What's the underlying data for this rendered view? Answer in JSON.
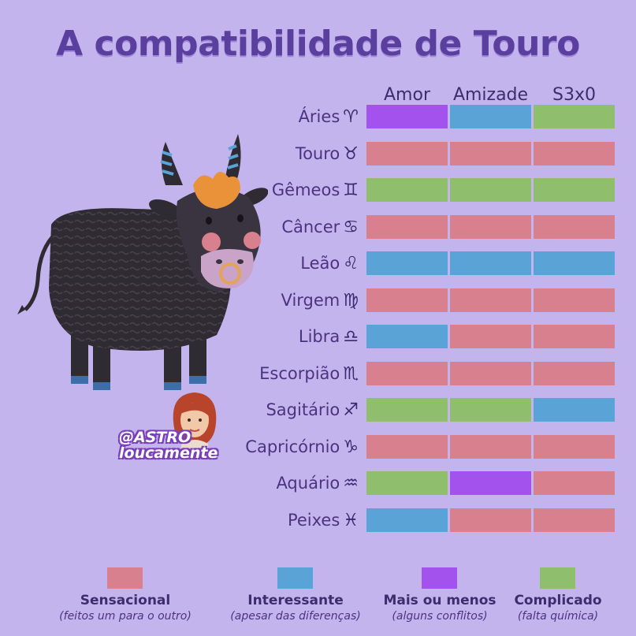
{
  "title": "A compatibilidade de Touro",
  "columns": [
    "Amor",
    "Amizade",
    "S3x0"
  ],
  "colors": {
    "sensacional": "#d8808e",
    "interessante": "#5aa3d6",
    "mais_ou_menos": "#a452ee",
    "complicado": "#8fbe6c"
  },
  "signs": [
    {
      "name": "Áries",
      "glyph": "♈︎",
      "values": [
        "mais_ou_menos",
        "interessante",
        "complicado"
      ]
    },
    {
      "name": "Touro",
      "glyph": "♉︎",
      "values": [
        "sensacional",
        "sensacional",
        "sensacional"
      ]
    },
    {
      "name": "Gêmeos",
      "glyph": "♊︎",
      "values": [
        "complicado",
        "complicado",
        "complicado"
      ]
    },
    {
      "name": "Câncer",
      "glyph": "♋︎",
      "values": [
        "sensacional",
        "sensacional",
        "sensacional"
      ]
    },
    {
      "name": "Leão",
      "glyph": "♌︎",
      "values": [
        "interessante",
        "interessante",
        "interessante"
      ]
    },
    {
      "name": "Virgem",
      "glyph": "♍︎",
      "values": [
        "sensacional",
        "sensacional",
        "sensacional"
      ]
    },
    {
      "name": "Libra",
      "glyph": "♎︎",
      "values": [
        "interessante",
        "sensacional",
        "sensacional"
      ]
    },
    {
      "name": "Escorpião",
      "glyph": "♏︎",
      "values": [
        "sensacional",
        "sensacional",
        "sensacional"
      ]
    },
    {
      "name": "Sagitário",
      "glyph": "♐︎",
      "values": [
        "complicado",
        "complicado",
        "interessante"
      ]
    },
    {
      "name": "Capricórnio",
      "glyph": "♑︎",
      "values": [
        "sensacional",
        "sensacional",
        "sensacional"
      ]
    },
    {
      "name": "Aquário",
      "glyph": "♒︎",
      "values": [
        "complicado",
        "mais_ou_menos",
        "sensacional"
      ]
    },
    {
      "name": "Peixes",
      "glyph": "♓︎",
      "values": [
        "interessante",
        "sensacional",
        "sensacional"
      ]
    }
  ],
  "legend": [
    {
      "key": "sensacional",
      "name": "Sensacional",
      "desc": "(feitos um para o outro)"
    },
    {
      "key": "interessante",
      "name": "Interessante",
      "desc": "(apesar das diferenças)"
    },
    {
      "key": "mais_ou_menos",
      "name": "Mais ou menos",
      "desc": "(alguns conflitos)"
    },
    {
      "key": "complicado",
      "name": "Complicado",
      "desc": "(falta química)"
    }
  ],
  "watermark": {
    "line1": "@ASTRO",
    "line2": "loucamente"
  }
}
